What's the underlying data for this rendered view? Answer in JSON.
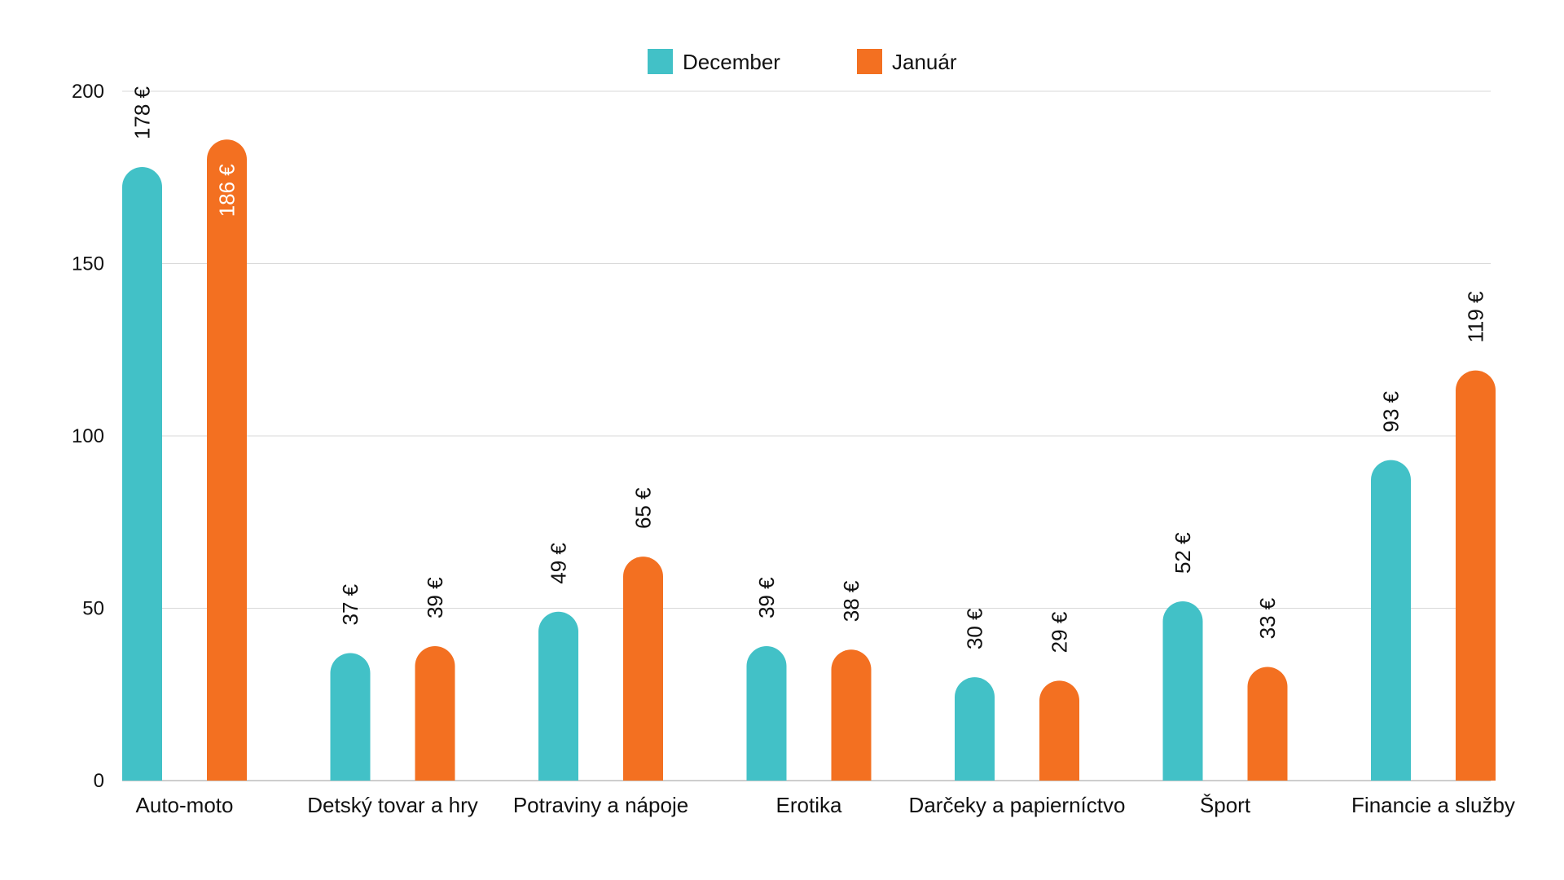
{
  "chart_data": {
    "type": "bar",
    "categories": [
      "Auto-moto",
      "Detský tovar a hry",
      "Potraviny a nápoje",
      "Erotika",
      "Darčeky a papierníctvo",
      "Šport",
      "Financie a služby"
    ],
    "series": [
      {
        "name": "December",
        "color": "#42c1c7",
        "values": [
          178,
          37,
          49,
          39,
          30,
          52,
          93
        ],
        "labels": [
          "178 €",
          "37 €",
          "49 €",
          "39 €",
          "30 €",
          "52 €",
          "93 €"
        ]
      },
      {
        "name": "Január",
        "color": "#f37021",
        "values": [
          186,
          39,
          65,
          38,
          29,
          33,
          119
        ],
        "labels": [
          "186 €",
          "39 €",
          "65 €",
          "38 €",
          "29 €",
          "33 €",
          "119 €"
        ]
      }
    ],
    "yticks": [
      "0",
      "50",
      "100",
      "150",
      "200"
    ],
    "ylim": [
      0,
      200
    ],
    "grid": true,
    "legend": "top-center"
  }
}
